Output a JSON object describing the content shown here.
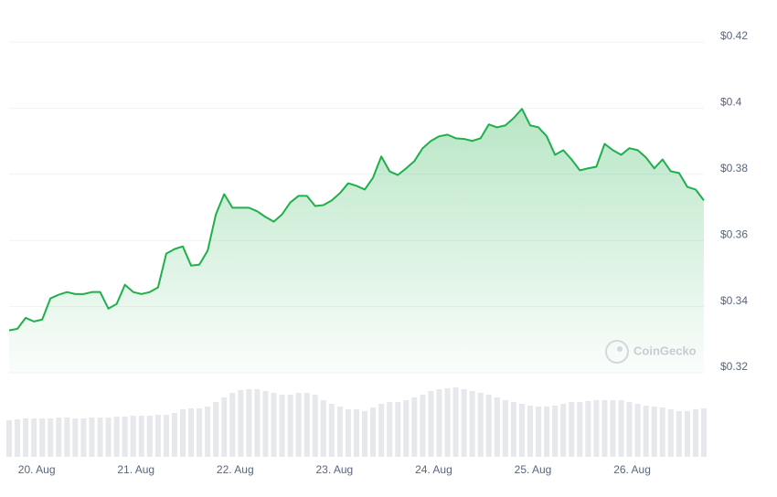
{
  "chart_data": {
    "type": "line",
    "categories": [
      null,
      null,
      null,
      "20. Aug",
      null,
      null,
      null,
      null,
      null,
      null,
      null,
      null,
      null,
      null,
      null,
      "21. Aug",
      null,
      null,
      null,
      null,
      null,
      null,
      null,
      null,
      null,
      null,
      null,
      "22. Aug",
      null,
      null,
      null,
      null,
      null,
      null,
      null,
      null,
      null,
      null,
      null,
      "23. Aug",
      null,
      null,
      null,
      null,
      null,
      null,
      null,
      null,
      null,
      null,
      null,
      "24. Aug",
      null,
      null,
      null,
      null,
      null,
      null,
      null,
      null,
      null,
      null,
      null,
      "25. Aug",
      null,
      null,
      null,
      null,
      null,
      null,
      null,
      null,
      null,
      null,
      null,
      "26. Aug",
      null,
      null,
      null,
      null,
      null,
      null,
      null,
      null,
      null
    ],
    "series": [
      {
        "color": "#20b04b",
        "values": [
          0.3328,
          0.3333,
          0.3366,
          0.3355,
          0.3361,
          0.3425,
          0.3436,
          0.3444,
          0.3438,
          0.3438,
          0.3444,
          0.3444,
          0.3394,
          0.3408,
          0.3466,
          0.3444,
          0.3438,
          0.3444,
          0.3458,
          0.356,
          0.3574,
          0.3582,
          0.3524,
          0.3527,
          0.3569,
          0.3679,
          0.374,
          0.3699,
          0.3699,
          0.3699,
          0.3688,
          0.3671,
          0.3657,
          0.3679,
          0.3715,
          0.3735,
          0.3735,
          0.3704,
          0.3707,
          0.3721,
          0.3743,
          0.3773,
          0.3765,
          0.3754,
          0.379,
          0.3854,
          0.3809,
          0.3798,
          0.3818,
          0.384,
          0.3879,
          0.3901,
          0.3915,
          0.392,
          0.3909,
          0.3907,
          0.3901,
          0.3909,
          0.3951,
          0.3942,
          0.3948,
          0.397,
          0.3998,
          0.3948,
          0.3942,
          0.3915,
          0.3859,
          0.3873,
          0.3845,
          0.3812,
          0.3818,
          0.3823,
          0.3892,
          0.3873,
          0.3859,
          0.3879,
          0.3873,
          0.3851,
          0.3818,
          0.3845,
          0.3809,
          0.3804,
          0.3762,
          0.3754,
          0.3721
        ]
      },
      {
        "color": "#e6e8ec",
        "axis": "y2",
        "values": [
          40,
          41,
          42,
          42,
          42,
          42,
          43,
          43,
          42,
          42,
          43,
          43,
          43,
          44,
          44,
          45,
          45,
          45,
          46,
          46,
          48,
          52,
          53,
          53,
          55,
          60,
          65,
          70,
          73,
          74,
          74,
          72,
          70,
          68,
          68,
          70,
          70,
          68,
          62,
          58,
          55,
          52,
          52,
          50,
          54,
          58,
          60,
          60,
          62,
          65,
          68,
          72,
          74,
          75,
          76,
          74,
          72,
          70,
          68,
          65,
          62,
          60,
          58,
          56,
          55,
          55,
          56,
          58,
          60,
          60,
          61,
          62,
          62,
          62,
          62,
          60,
          58,
          56,
          55,
          54,
          52,
          50,
          50,
          52,
          53
        ]
      }
    ],
    "ylim": [
      0.32,
      0.42
    ],
    "yticks": [
      {
        "value": 0.32,
        "label": "$0.32"
      },
      {
        "value": 0.34,
        "label": "$0.34"
      },
      {
        "value": 0.36,
        "label": "$0.36"
      },
      {
        "value": 0.38,
        "label": "$0.38"
      },
      {
        "value": 0.4,
        "label": "$0.4"
      },
      {
        "value": 0.42,
        "label": "$0.42"
      }
    ],
    "y2lim": [
      0,
      100
    ],
    "grid": true,
    "watermark": "CoinGecko"
  }
}
